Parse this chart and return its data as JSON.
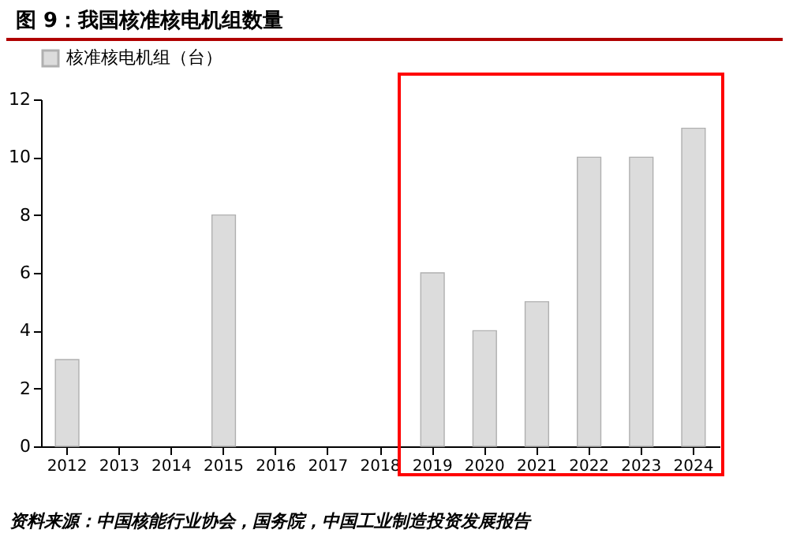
{
  "chart_data": {
    "type": "bar",
    "title": "图 9：我国核准核电机组数量",
    "categories": [
      "2012",
      "2013",
      "2014",
      "2015",
      "2016",
      "2017",
      "2018",
      "2019",
      "2020",
      "2021",
      "2022",
      "2023",
      "2024"
    ],
    "series": [
      {
        "name": "核准核电机组（台）",
        "color": "#dcdcdc",
        "values": [
          3,
          0,
          0,
          8,
          0,
          0,
          0,
          6,
          4,
          5,
          10,
          10,
          11
        ]
      }
    ],
    "ylim": [
      0,
      12
    ],
    "yticks": [
      0,
      2,
      4,
      6,
      8,
      10,
      12
    ],
    "legend": "top",
    "annotations": [
      "资料来源：中国核能行业协会，国务院，中国工业制造投资发展报告"
    ]
  }
}
